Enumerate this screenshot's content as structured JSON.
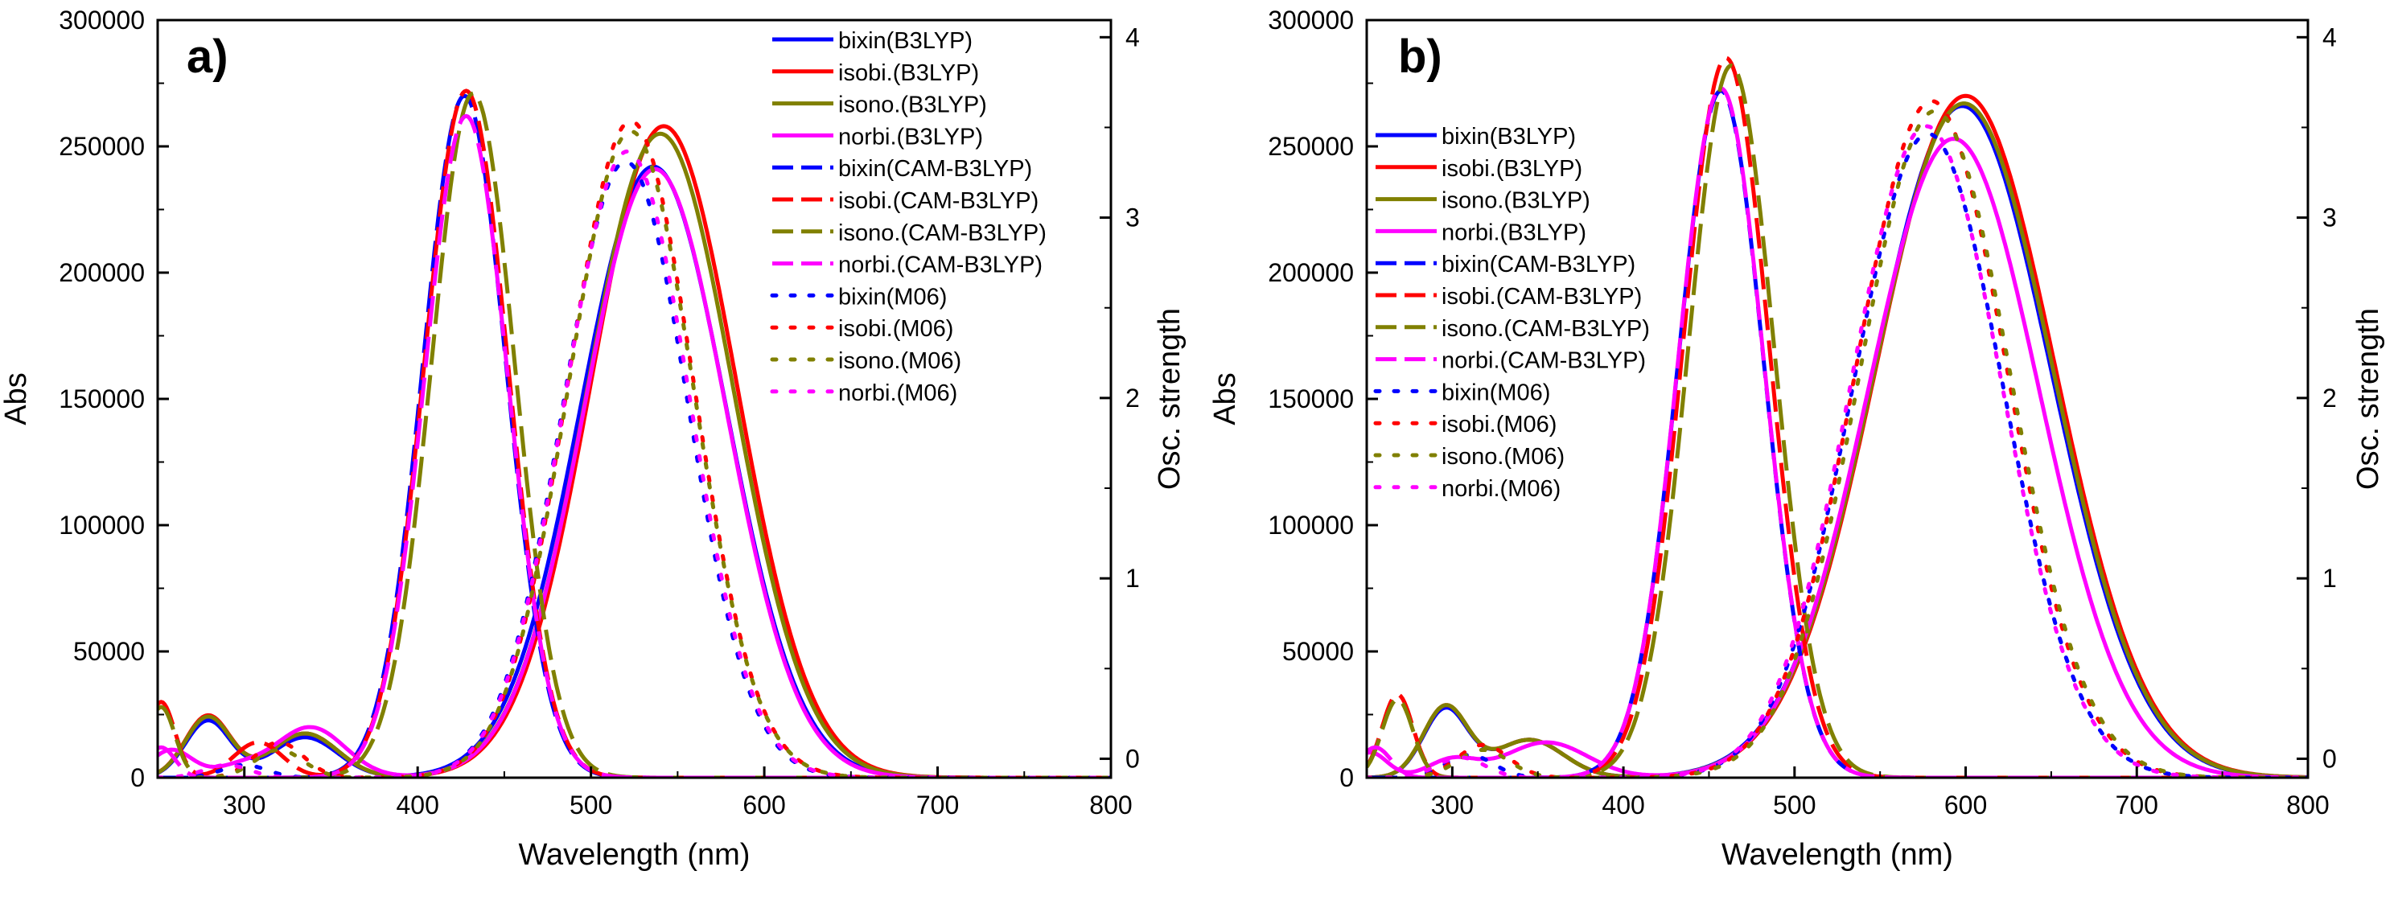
{
  "chart_data": [
    {
      "type": "line",
      "panel_label": "a)",
      "xlabel": "Wavelength (nm)",
      "ylabel": "Abs",
      "y2label": "Osc. strength",
      "xlim": [
        250,
        800
      ],
      "ylim": [
        0,
        300000
      ],
      "y2lim": [
        -0.105,
        4.095
      ],
      "xticks": [
        300,
        400,
        500,
        600,
        700,
        800
      ],
      "yticks": [
        0,
        50000,
        100000,
        150000,
        200000,
        250000,
        300000
      ],
      "y2ticks": [
        0,
        1,
        2,
        3,
        4
      ],
      "legend_position": "top-right",
      "series": [
        {
          "name": "bixin(B3LYP)",
          "color": "#0000ff",
          "style": "solid",
          "peaks": [
            [
              279,
              22500,
              13
            ],
            [
              335,
              16000,
              19
            ],
            [
              536,
              242000,
              42
            ]
          ]
        },
        {
          "name": "isobi.(B3LYP)",
          "color": "#ff0000",
          "style": "solid",
          "peaks": [
            [
              279,
              24500,
              13
            ],
            [
              335,
              17500,
              19
            ],
            [
              542,
              258000,
              42
            ]
          ]
        },
        {
          "name": "isono.(B3LYP)",
          "color": "#808000",
          "style": "solid",
          "peaks": [
            [
              279,
              24000,
              13
            ],
            [
              335,
              17500,
              19
            ],
            [
              540,
              255000,
              42
            ]
          ]
        },
        {
          "name": "norbi.(B3LYP)",
          "color": "#ff00ff",
          "style": "solid",
          "peaks": [
            [
              258,
              11000,
              12
            ],
            [
              296,
              4000,
              14
            ],
            [
              338,
              20000,
              20
            ],
            [
              537,
              241000,
              41
            ]
          ]
        },
        {
          "name": "bixin(CAM-B3LYP)",
          "color": "#0000ff",
          "style": "dash",
          "peaks": [
            [
              427,
              270000,
              24
            ]
          ]
        },
        {
          "name": "isobi.(CAM-B3LYP)",
          "color": "#ff0000",
          "style": "dash",
          "peaks": [
            [
              252,
              30000,
              8
            ],
            [
              308,
              14000,
              14
            ],
            [
              428,
              272000,
              24
            ]
          ]
        },
        {
          "name": "isono.(CAM-B3LYP)",
          "color": "#808000",
          "style": "dash",
          "peaks": [
            [
              252,
              28000,
              8
            ],
            [
              432,
              271000,
              24
            ]
          ]
        },
        {
          "name": "norbi.(CAM-B3LYP)",
          "color": "#ff00ff",
          "style": "dash",
          "peaks": [
            [
              252,
              12000,
              8
            ],
            [
              428,
              262000,
              24
            ]
          ]
        },
        {
          "name": "bixin(M06)",
          "color": "#0000ff",
          "style": "dot",
          "peaks": [
            [
              300,
              5000,
              13
            ],
            [
              520,
              244000,
              36
            ]
          ]
        },
        {
          "name": "isobi.(M06)",
          "color": "#ff0000",
          "style": "dot",
          "peaks": [
            [
              320,
              14000,
              14
            ],
            [
              523,
              260000,
              36
            ]
          ]
        },
        {
          "name": "isono.(M06)",
          "color": "#808000",
          "style": "dot",
          "peaks": [
            [
              320,
              11000,
              14
            ],
            [
              523,
              256000,
              36
            ]
          ]
        },
        {
          "name": "norbi.(M06)",
          "color": "#ff00ff",
          "style": "dot",
          "peaks": [
            [
              290,
              5000,
              13
            ],
            [
              521,
              248000,
              36
            ]
          ]
        }
      ]
    },
    {
      "type": "line",
      "panel_label": "b)",
      "xlabel": "Wavelength (nm)",
      "ylabel": "Abs",
      "y2label": "Osc. strength",
      "xlim": [
        250,
        800
      ],
      "ylim": [
        0,
        300000
      ],
      "y2lim": [
        -0.105,
        4.095
      ],
      "xticks": [
        300,
        400,
        500,
        600,
        700,
        800
      ],
      "yticks": [
        0,
        50000,
        100000,
        150000,
        200000,
        250000,
        300000
      ],
      "y2ticks": [
        0,
        1,
        2,
        3,
        4
      ],
      "legend_position": "top-left",
      "series": [
        {
          "name": "bixin(B3LYP)",
          "color": "#0000ff",
          "style": "solid",
          "peaks": [
            [
              296,
              27000,
              13
            ],
            [
              345,
              15000,
              20
            ],
            [
              598,
              266000,
              52
            ]
          ]
        },
        {
          "name": "isobi.(B3LYP)",
          "color": "#ff0000",
          "style": "solid",
          "peaks": [
            [
              296,
              28000,
              13
            ],
            [
              345,
              15000,
              20
            ],
            [
              600,
              270000,
              52
            ]
          ]
        },
        {
          "name": "isono.(B3LYP)",
          "color": "#808000",
          "style": "solid",
          "peaks": [
            [
              296,
              28000,
              13
            ],
            [
              345,
              15000,
              20
            ],
            [
              599,
              267000,
              52
            ]
          ]
        },
        {
          "name": "norbi.(B3LYP)",
          "color": "#ff00ff",
          "style": "solid",
          "peaks": [
            [
              252,
              10000,
              10
            ],
            [
              300,
              7000,
              14
            ],
            [
              355,
              14000,
              24
            ],
            [
              593,
              253000,
              50
            ]
          ]
        },
        {
          "name": "bixin(CAM-B3LYP)",
          "color": "#0000ff",
          "style": "dash",
          "peaks": [
            [
              457,
              272000,
              25
            ]
          ]
        },
        {
          "name": "isobi.(CAM-B3LYP)",
          "color": "#ff0000",
          "style": "dash",
          "peaks": [
            [
              268,
              33000,
              9
            ],
            [
              460,
              285000,
              25
            ]
          ]
        },
        {
          "name": "isono.(CAM-B3LYP)",
          "color": "#808000",
          "style": "dash",
          "peaks": [
            [
              268,
              31000,
              9
            ],
            [
              463,
              282000,
              25
            ]
          ]
        },
        {
          "name": "norbi.(CAM-B3LYP)",
          "color": "#ff00ff",
          "style": "dash",
          "peaks": [
            [
              255,
              12000,
              9
            ],
            [
              457,
              273000,
              25
            ]
          ]
        },
        {
          "name": "bixin(M06)",
          "color": "#0000ff",
          "style": "dot",
          "peaks": [
            [
              310,
              9000,
              14
            ],
            [
              578,
              255000,
              44
            ]
          ]
        },
        {
          "name": "isobi.(M06)",
          "color": "#ff0000",
          "style": "dot",
          "peaks": [
            [
              318,
              13000,
              15
            ],
            [
              580,
              268000,
              44
            ]
          ]
        },
        {
          "name": "isono.(M06)",
          "color": "#808000",
          "style": "dot",
          "peaks": [
            [
              318,
              11000,
              15
            ],
            [
              582,
              264000,
              44
            ]
          ]
        },
        {
          "name": "norbi.(M06)",
          "color": "#ff00ff",
          "style": "dot",
          "peaks": [
            [
              305,
              8000,
              14
            ],
            [
              577,
              258000,
              44
            ]
          ]
        }
      ]
    }
  ]
}
